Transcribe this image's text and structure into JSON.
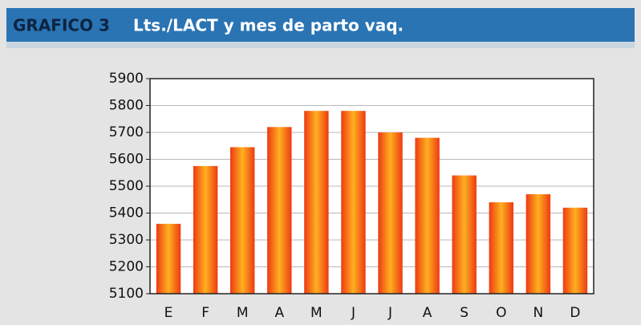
{
  "chart_data": {
    "type": "bar",
    "title": "GRAFICO 3",
    "subtitle": "Lts./LACT y mes de parto vaq.",
    "categories": [
      "E",
      "F",
      "M",
      "A",
      "M",
      "J",
      "J",
      "A",
      "S",
      "O",
      "N",
      "D"
    ],
    "values": [
      5360,
      5575,
      5645,
      5720,
      5780,
      5780,
      5700,
      5680,
      5540,
      5440,
      5470,
      5420
    ],
    "color": "#ee3a12",
    "ylim": [
      5100,
      5900
    ],
    "yticks": [
      5100,
      5200,
      5300,
      5400,
      5500,
      5600,
      5700,
      5800,
      5900
    ],
    "grid": true
  }
}
